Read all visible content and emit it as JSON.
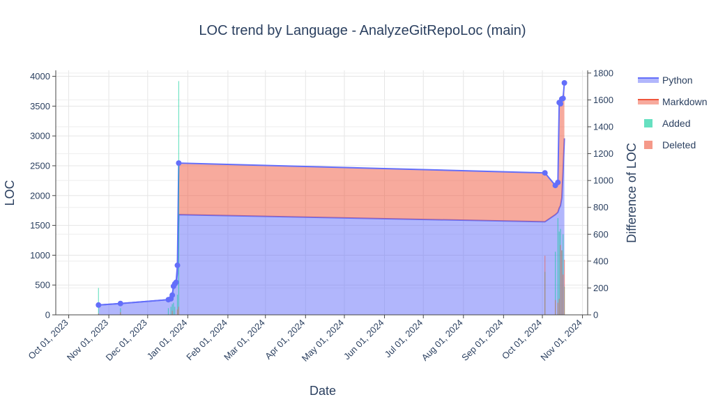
{
  "chart_data": {
    "type": "area",
    "title": "LOC trend by Language - AnalyzeGitRepoLoc (main)",
    "xlabel": "Date",
    "ylabel": "LOC",
    "y2label": "Difference of LOC",
    "ylim": [
      0,
      4100
    ],
    "y2lim": [
      0,
      1820
    ],
    "xlim": [
      "2023-09-21",
      "2024-11-05"
    ],
    "yticks": [
      0,
      500,
      1000,
      1500,
      2000,
      2500,
      3000,
      3500,
      4000
    ],
    "y2ticks": [
      0,
      200,
      400,
      600,
      800,
      1000,
      1200,
      1400,
      1600,
      1800
    ],
    "x_ticks": [
      {
        "date": "2023-10-01",
        "label": "Oct 01, 2023"
      },
      {
        "date": "2023-11-01",
        "label": "Nov 01, 2023"
      },
      {
        "date": "2023-12-01",
        "label": "Dec 01, 2023"
      },
      {
        "date": "2024-01-01",
        "label": "Jan 01, 2024"
      },
      {
        "date": "2024-02-01",
        "label": "Feb 01, 2024"
      },
      {
        "date": "2024-03-01",
        "label": "Mar 01, 2024"
      },
      {
        "date": "2024-04-01",
        "label": "Apr 01, 2024"
      },
      {
        "date": "2024-05-01",
        "label": "May 01, 2024"
      },
      {
        "date": "2024-06-01",
        "label": "Jun 01, 2024"
      },
      {
        "date": "2024-07-01",
        "label": "Jul 01, 2024"
      },
      {
        "date": "2024-08-01",
        "label": "Aug 01, 2024"
      },
      {
        "date": "2024-09-01",
        "label": "Sep 01, 2024"
      },
      {
        "date": "2024-10-01",
        "label": "Oct 01, 2024"
      },
      {
        "date": "2024-11-01",
        "label": "Nov 01, 2024"
      }
    ],
    "grid": true,
    "legend_position": "top-right",
    "series": [
      {
        "name": "Python",
        "kind": "stacked-area",
        "color": "#636efa",
        "fill": "rgba(99,110,250,0.5)",
        "points": [
          [
            "2023-10-24",
            165
          ],
          [
            "2023-11-10",
            190
          ],
          [
            "2023-12-17",
            255
          ],
          [
            "2023-12-19",
            270
          ],
          [
            "2023-12-20",
            330
          ],
          [
            "2023-12-21",
            480
          ],
          [
            "2023-12-22",
            520
          ],
          [
            "2023-12-23",
            545
          ],
          [
            "2023-12-24",
            690
          ],
          [
            "2023-12-25",
            1680
          ],
          [
            "2024-10-03",
            1560
          ],
          [
            "2024-10-11",
            1680
          ],
          [
            "2024-10-13",
            1720
          ],
          [
            "2024-10-14",
            1790
          ],
          [
            "2024-10-15",
            1830
          ],
          [
            "2024-10-16",
            1960
          ],
          [
            "2024-10-17",
            2400
          ],
          [
            "2024-10-18",
            2960
          ]
        ]
      },
      {
        "name": "Markdown",
        "kind": "stacked-area",
        "color": "#636efa",
        "fill": "rgba(239,85,59,0.5)",
        "legend_color": "#ef553b",
        "points": [
          [
            "2023-10-24",
            0
          ],
          [
            "2023-11-10",
            0
          ],
          [
            "2023-12-17",
            0
          ],
          [
            "2023-12-19",
            0
          ],
          [
            "2023-12-20",
            0
          ],
          [
            "2023-12-21",
            0
          ],
          [
            "2023-12-22",
            0
          ],
          [
            "2023-12-23",
            0
          ],
          [
            "2023-12-24",
            140
          ],
          [
            "2023-12-25",
            865
          ],
          [
            "2024-10-03",
            820
          ],
          [
            "2024-10-11",
            490
          ],
          [
            "2024-10-13",
            500
          ],
          [
            "2024-10-14",
            1770
          ],
          [
            "2024-10-15",
            1710
          ],
          [
            "2024-10-16",
            1660
          ],
          [
            "2024-10-17",
            1230
          ],
          [
            "2024-10-18",
            930
          ]
        ]
      },
      {
        "name": "Added",
        "kind": "bar",
        "axis": "y2",
        "color": "#00cc96",
        "points": [
          [
            "2023-10-24",
            200
          ],
          [
            "2023-11-10",
            50
          ],
          [
            "2023-12-17",
            50
          ],
          [
            "2023-12-19",
            60
          ],
          [
            "2023-12-20",
            80
          ],
          [
            "2023-12-21",
            90
          ],
          [
            "2023-12-22",
            60
          ],
          [
            "2023-12-24",
            150
          ],
          [
            "2023-12-25",
            1740
          ],
          [
            "2024-10-03",
            320
          ],
          [
            "2024-10-11",
            470
          ],
          [
            "2024-10-13",
            720
          ],
          [
            "2024-10-14",
            620
          ],
          [
            "2024-10-15",
            640
          ],
          [
            "2024-10-16",
            480
          ],
          [
            "2024-10-17",
            600
          ],
          [
            "2024-10-18",
            210
          ]
        ]
      },
      {
        "name": "Deleted",
        "kind": "bar",
        "axis": "y2",
        "color": "#ef553b",
        "points": [
          [
            "2023-10-24",
            10
          ],
          [
            "2023-11-10",
            20
          ],
          [
            "2023-12-20",
            30
          ],
          [
            "2023-12-24",
            40
          ],
          [
            "2023-12-25",
            60
          ],
          [
            "2024-10-03",
            440
          ],
          [
            "2024-10-11",
            110
          ],
          [
            "2024-10-13",
            90
          ],
          [
            "2024-10-14",
            120
          ],
          [
            "2024-10-15",
            520
          ],
          [
            "2024-10-16",
            480
          ],
          [
            "2024-10-17",
            300
          ],
          [
            "2024-10-18",
            410
          ]
        ]
      }
    ]
  }
}
